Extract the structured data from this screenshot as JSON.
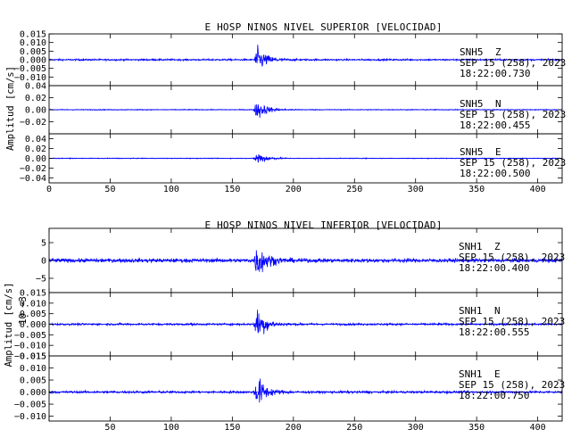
{
  "figure": {
    "background": "#ffffff",
    "trace_color": "#0000ff",
    "axis_color": "#000000"
  },
  "chart_data": [
    {
      "type": "line",
      "title": "E HOSP NINOS NIVEL SUPERIOR [VELOCIDAD]",
      "ylabel": "Amplitud [cm/s]",
      "xlabel": "",
      "xlim": [
        0,
        420
      ],
      "x_ticks": [
        0,
        50,
        100,
        150,
        200,
        250,
        300,
        350,
        400
      ],
      "show_x_tick_labels": true,
      "grid": false,
      "event_time_s": 170,
      "panels": [
        {
          "station": "SNH5",
          "component": "Z",
          "date": "SEP 15 (258), 2023",
          "time": "18:22:00.730",
          "ylim": [
            -0.015,
            0.015
          ],
          "y_ticks": [
            -0.01,
            -0.005,
            0.0,
            0.005,
            0.01,
            0.015
          ],
          "y_tick_labels": [
            "−0.010",
            "−0.005",
            "0.000",
            "0.005",
            "0.010",
            "0.015"
          ],
          "noise_level": 0.0008,
          "peak_amplitude": 0.012
        },
        {
          "station": "SNH5",
          "component": "N",
          "date": "SEP 15 (258), 2023",
          "time": "18:22:00.455",
          "ylim": [
            -0.04,
            0.04
          ],
          "y_ticks": [
            -0.02,
            0.0,
            0.02,
            0.04
          ],
          "y_tick_labels": [
            "−0.02",
            "0.00",
            "0.02",
            "0.04"
          ],
          "noise_level": 0.0012,
          "peak_amplitude": 0.028
        },
        {
          "station": "SNH5",
          "component": "E",
          "date": "SEP 15 (258), 2023",
          "time": "18:22:00.500",
          "ylim": [
            -0.05,
            0.05
          ],
          "y_ticks": [
            -0.04,
            -0.02,
            0.0,
            0.02,
            0.04
          ],
          "y_tick_labels": [
            "−0.04",
            "−0.02",
            "0.00",
            "0.02",
            "0.04"
          ],
          "noise_level": 0.0012,
          "peak_amplitude": 0.024
        }
      ]
    },
    {
      "type": "line",
      "title": "E HOSP NINOS NIVEL INFERIOR [VELOCIDAD]",
      "ylabel": "Amplitud [cm/s]",
      "ylabel_multiplier": "10 −3",
      "xlabel": "",
      "xlim": [
        0,
        420
      ],
      "x_ticks": [
        0,
        50,
        100,
        150,
        200,
        250,
        300,
        350,
        400
      ],
      "x_tick_labels": [
        "",
        "50",
        "100",
        "150",
        "200",
        "250",
        "300",
        "350",
        "400"
      ],
      "show_x_tick_labels": true,
      "grid": false,
      "event_time_s": 170,
      "panels": [
        {
          "station": "SNH1",
          "component": "Z",
          "date": "SEP 15 (258), 2023",
          "time": "18:22:00.400",
          "ylim": [
            -9,
            9
          ],
          "y_ticks": [
            -5,
            0,
            5
          ],
          "y_tick_labels": [
            "−5",
            "0",
            "5"
          ],
          "noise_level": 0.9,
          "peak_amplitude": 8
        },
        {
          "station": "SNH1",
          "component": "N",
          "date": "SEP 15 (258), 2023",
          "time": "18:22:00.555",
          "ylim": [
            -0.015,
            0.015
          ],
          "y_ticks": [
            -0.015,
            -0.01,
            -0.005,
            0.0,
            0.005,
            0.01,
            0.015
          ],
          "y_tick_labels": [
            "−0.015",
            "−0.010",
            "−0.005",
            "0.000",
            "0.005",
            "0.010",
            "0.015"
          ],
          "noise_level": 0.0008,
          "peak_amplitude": 0.012
        },
        {
          "station": "SNH1",
          "component": "E",
          "date": "SEP 15 (258), 2023",
          "time": "18:22:00.750",
          "ylim": [
            -0.012,
            0.015
          ],
          "y_ticks": [
            -0.01,
            -0.005,
            0.0,
            0.005,
            0.01,
            0.015
          ],
          "y_tick_labels": [
            "−0.010",
            "−0.005",
            "0.000",
            "0.005",
            "0.010",
            "0.015"
          ],
          "noise_level": 0.0008,
          "peak_amplitude": 0.01
        }
      ]
    }
  ]
}
